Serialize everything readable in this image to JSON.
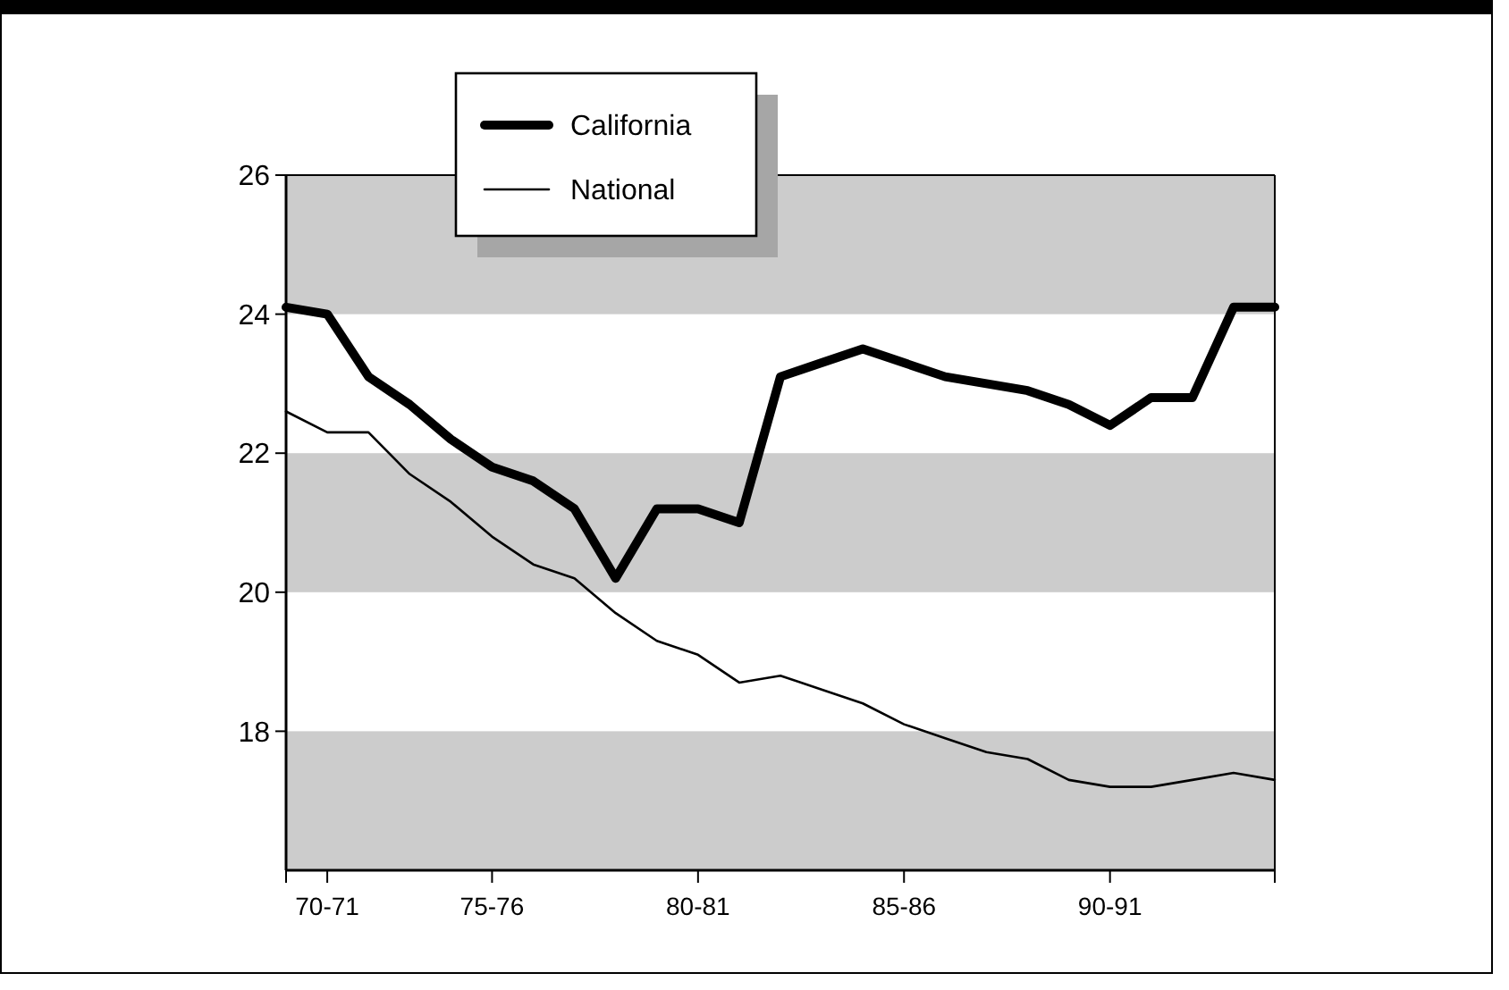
{
  "chart_data": {
    "type": "line",
    "categories": [
      null,
      "70-71",
      null,
      null,
      null,
      "75-76",
      null,
      null,
      null,
      null,
      "80-81",
      null,
      null,
      null,
      null,
      "85-86",
      null,
      null,
      null,
      null,
      "90-91",
      null,
      null,
      null,
      null
    ],
    "series": [
      {
        "name": "California",
        "color": "#000000",
        "values": [
          24.1,
          24.0,
          23.1,
          22.7,
          22.2,
          21.8,
          21.6,
          21.2,
          20.2,
          21.2,
          21.2,
          21.0,
          23.1,
          23.3,
          23.5,
          23.3,
          23.1,
          23.0,
          22.9,
          22.7,
          22.4,
          22.8,
          22.8,
          24.1,
          24.1
        ]
      },
      {
        "name": "National",
        "color": "#000000",
        "values": [
          22.6,
          22.3,
          22.3,
          21.7,
          21.3,
          20.8,
          20.4,
          20.2,
          19.7,
          19.3,
          19.1,
          18.7,
          18.8,
          18.6,
          18.4,
          18.1,
          17.9,
          17.7,
          17.6,
          17.3,
          17.2,
          17.2,
          17.3,
          17.4,
          17.3
        ]
      }
    ],
    "ylim": [
      16,
      26
    ],
    "yticks": [
      18,
      20,
      22,
      24,
      26
    ],
    "bands": [
      {
        "axis": "y",
        "from": 24,
        "to": 26,
        "color": "#cccccc"
      },
      {
        "axis": "y",
        "from": 20,
        "to": 22,
        "color": "#cccccc"
      },
      {
        "axis": "y",
        "from": 16,
        "to": 18,
        "color": "#cccccc"
      }
    ],
    "legend": "top left",
    "marker": "none",
    "line_style": "solid",
    "grid": false
  }
}
